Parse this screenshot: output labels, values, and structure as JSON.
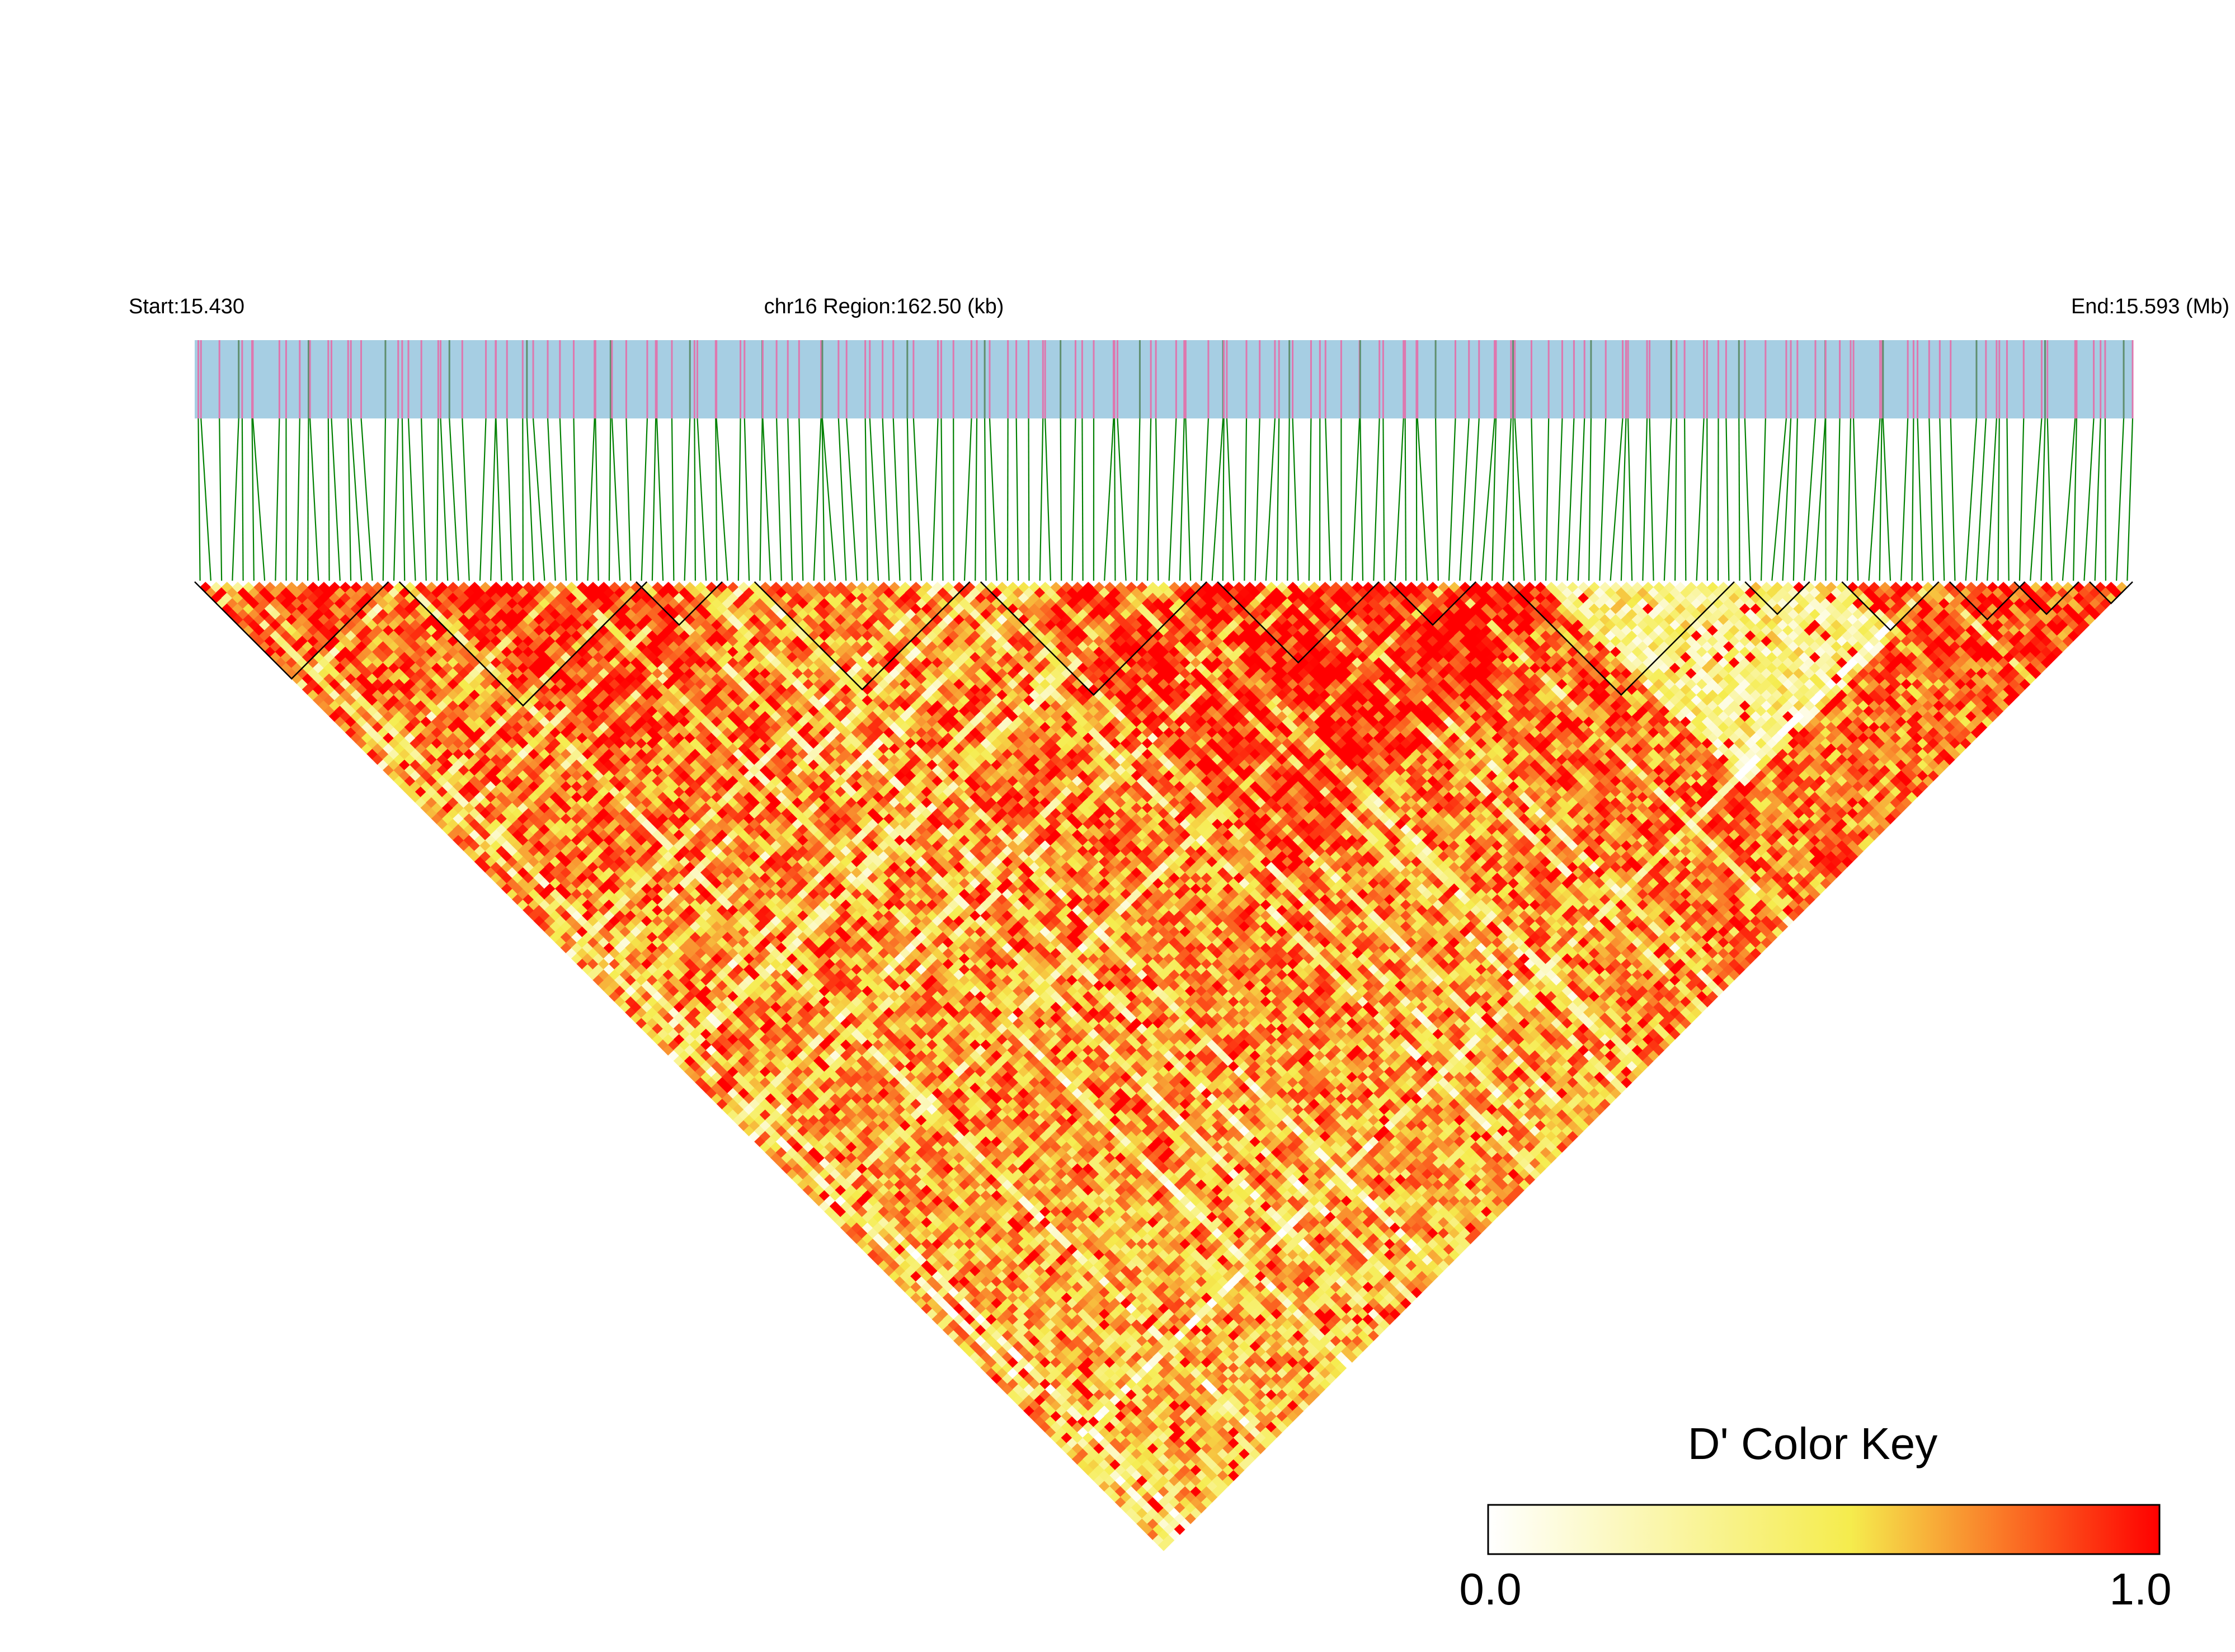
{
  "chart_data": {
    "type": "heatmap",
    "subtype": "LD triangle heatmap (LDBlockShow)",
    "header": {
      "start_label": "Start:15.430",
      "region_label": "chr16 Region:162.50 (kb)",
      "end_label": "End:15.593 (Mb)"
    },
    "chromosome": "chr16",
    "region_start_mb": 15.43,
    "region_end_mb": 15.593,
    "region_length_kb": 162.5,
    "metric": "D'",
    "color_key": {
      "title": "D' Color Key",
      "min_label": "0.0",
      "max_label": "1.0",
      "min": 0.0,
      "max": 1.0,
      "colors": [
        "#ffffff",
        "#f5ec4d",
        "#ff0000"
      ]
    },
    "colors": {
      "track_background": "#a6cee3",
      "track_marker_primary": "#de77ae",
      "track_marker_secondary": "#5f8f6e",
      "connector_lines": "#008000",
      "block_outline": "#000000"
    },
    "ld_blocks_relative": [
      [
        0.0,
        0.1
      ],
      [
        0.11,
        0.23
      ],
      [
        0.23,
        0.27
      ],
      [
        0.29,
        0.4
      ],
      [
        0.41,
        0.52
      ],
      [
        0.53,
        0.61
      ],
      [
        0.62,
        0.66
      ],
      [
        0.68,
        0.79
      ],
      [
        0.8,
        0.83
      ],
      [
        0.85,
        0.9
      ],
      [
        0.91,
        0.94
      ],
      [
        0.94,
        0.97
      ],
      [
        0.98,
        1.0
      ]
    ],
    "ld_regions_relative": [
      {
        "from": 0.42,
        "to": 0.71,
        "level": 0.97
      },
      {
        "from": 0.7,
        "to": 0.9,
        "level": 0.35
      },
      {
        "from": 0.12,
        "to": 0.3,
        "level": 0.9
      },
      {
        "from": 0.25,
        "to": 0.45,
        "level": 0.7
      },
      {
        "from": 0.86,
        "to": 0.99,
        "level": 0.85
      },
      {
        "from": 0.0,
        "to": 0.1,
        "level": 0.9
      }
    ]
  }
}
